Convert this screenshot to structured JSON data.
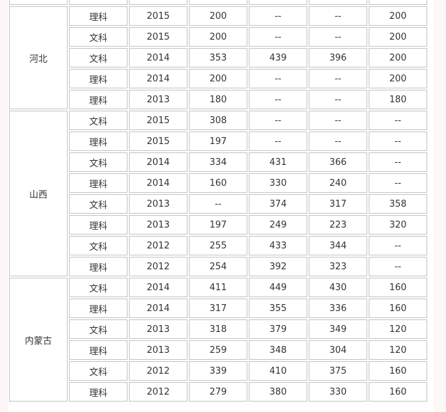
{
  "groups": [
    {
      "province": "河北",
      "rows": [
        [
          "理科",
          "2015",
          "200",
          "--",
          "--",
          "200"
        ],
        [
          "文科",
          "2015",
          "200",
          "--",
          "--",
          "200"
        ],
        [
          "文科",
          "2014",
          "353",
          "439",
          "396",
          "200"
        ],
        [
          "理科",
          "2014",
          "200",
          "--",
          "--",
          "200"
        ],
        [
          "理科",
          "2013",
          "180",
          "--",
          "--",
          "180"
        ]
      ]
    },
    {
      "province": "山西",
      "rows": [
        [
          "文科",
          "2015",
          "308",
          "--",
          "--",
          "--"
        ],
        [
          "理科",
          "2015",
          "197",
          "--",
          "--",
          "--"
        ],
        [
          "文科",
          "2014",
          "334",
          "431",
          "366",
          "--"
        ],
        [
          "理科",
          "2014",
          "160",
          "330",
          "240",
          "--"
        ],
        [
          "文科",
          "2013",
          "--",
          "374",
          "317",
          "358"
        ],
        [
          "理科",
          "2013",
          "197",
          "249",
          "223",
          "320"
        ],
        [
          "文科",
          "2012",
          "255",
          "433",
          "344",
          "--"
        ],
        [
          "理科",
          "2012",
          "254",
          "392",
          "323",
          "--"
        ]
      ]
    },
    {
      "province": "内蒙古",
      "rows": [
        [
          "文科",
          "2014",
          "411",
          "449",
          "430",
          "160"
        ],
        [
          "理科",
          "2014",
          "317",
          "355",
          "336",
          "160"
        ],
        [
          "文科",
          "2013",
          "318",
          "379",
          "349",
          "120"
        ],
        [
          "理科",
          "2013",
          "259",
          "348",
          "304",
          "120"
        ],
        [
          "文科",
          "2012",
          "339",
          "410",
          "375",
          "160"
        ],
        [
          "理科",
          "2012",
          "279",
          "380",
          "330",
          "160"
        ]
      ]
    }
  ]
}
